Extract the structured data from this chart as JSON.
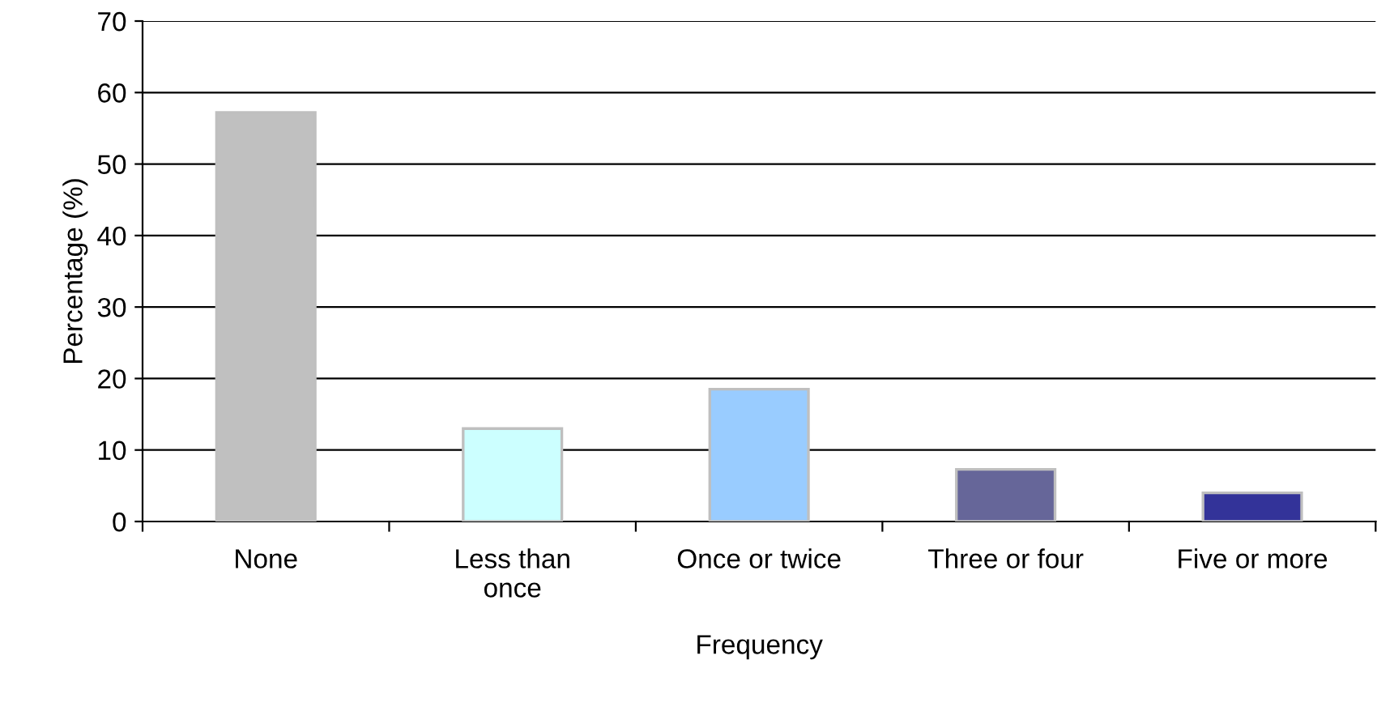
{
  "chart_data": {
    "type": "bar",
    "xlabel": "Frequency",
    "ylabel": "Percentage (%)",
    "categories": [
      "None",
      "Less than\nonce",
      "Once or twice",
      "Three or four",
      "Five or more"
    ],
    "values": [
      57.2,
      13.0,
      18.5,
      7.3,
      4.0
    ],
    "colors": [
      "#c0c0c0",
      "#ccffff",
      "#99ccff",
      "#666699",
      "#333399"
    ],
    "ylim": [
      0,
      70
    ],
    "yticks": [
      0,
      10,
      20,
      30,
      40,
      50,
      60,
      70
    ],
    "grid": "y"
  }
}
